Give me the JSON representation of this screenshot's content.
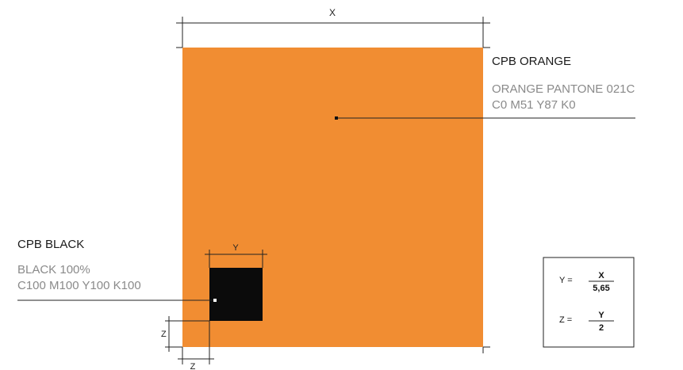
{
  "colors": {
    "orange": "#F18D32",
    "black": "#0b0b0b",
    "line": "#222222",
    "muted": "#8a8a8a"
  },
  "dimensions": {
    "x_label": "X",
    "y_label": "Y",
    "z_label": "Z"
  },
  "orange_callout": {
    "title": "CPB ORANGE",
    "line1": "ORANGE PANTONE 021C",
    "line2": "C0 M51 Y87 K0"
  },
  "black_callout": {
    "title": "CPB BLACK",
    "line1": "BLACK 100%",
    "line2": "C100 M100 Y100 K100"
  },
  "formula": {
    "y_lhs": "Y =",
    "y_num": "X",
    "y_den": "5,65",
    "z_lhs": "Z =",
    "z_num": "Y",
    "z_den": "2"
  }
}
